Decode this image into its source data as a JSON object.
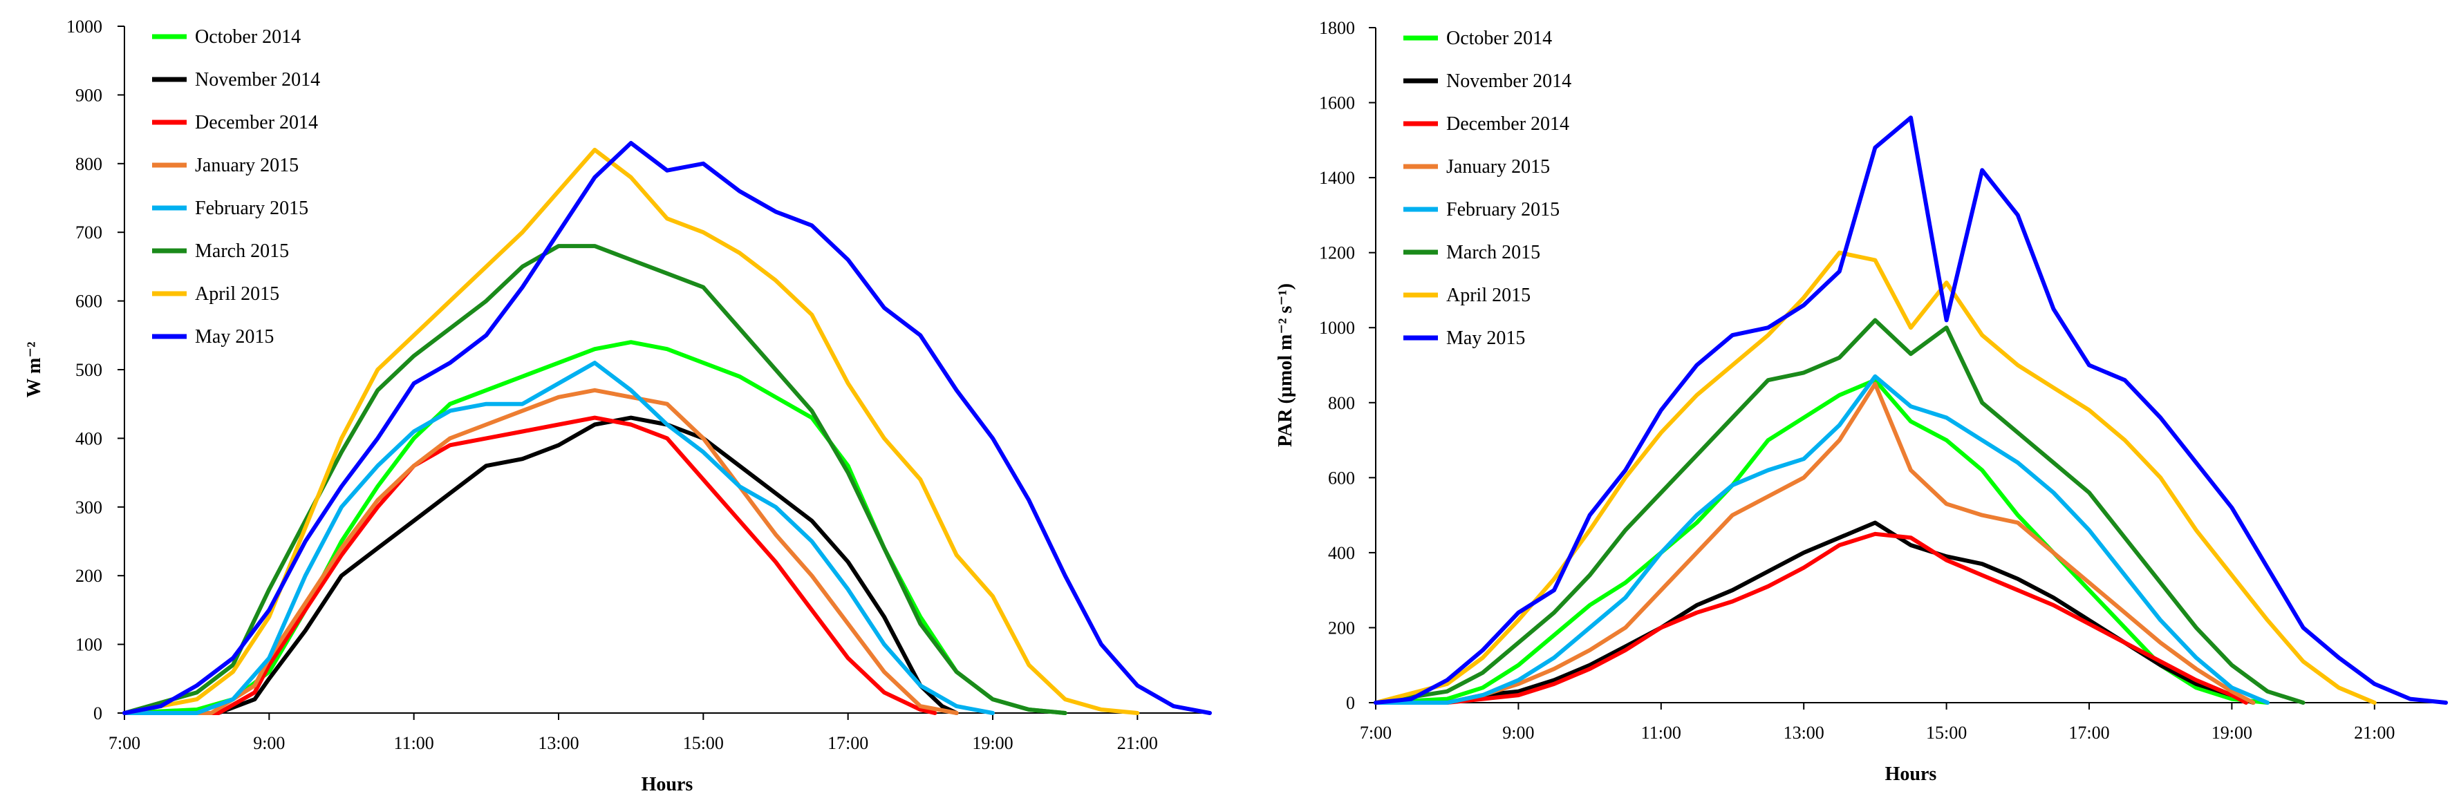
{
  "chart_data": [
    {
      "type": "line",
      "ylabel": "W m⁻²",
      "xlabel": "Hours",
      "ylim": [
        0,
        1000
      ],
      "xlim": [
        7,
        22
      ],
      "yticks": [
        0,
        100,
        200,
        300,
        400,
        500,
        600,
        700,
        800,
        900,
        1000
      ],
      "xticks": [
        "7:00",
        "9:00",
        "11:00",
        "13:00",
        "15:00",
        "17:00",
        "19:00",
        "21:00"
      ],
      "legend_position": "top-left",
      "series": [
        {
          "name": "October 2014",
          "color": "#00ff00",
          "x": [
            7,
            8,
            8.5,
            9,
            9.5,
            10,
            10.5,
            11,
            11.5,
            12,
            12.5,
            13,
            13.5,
            14,
            14.5,
            15,
            15.5,
            16,
            16.5,
            17,
            17.5,
            18,
            18.5,
            19,
            19.5,
            20
          ],
          "y": [
            0,
            5,
            20,
            60,
            150,
            250,
            330,
            400,
            450,
            470,
            490,
            510,
            530,
            540,
            530,
            510,
            490,
            460,
            430,
            360,
            240,
            140,
            60,
            20,
            5,
            0
          ]
        },
        {
          "name": "November 2014",
          "color": "#000000",
          "x": [
            7,
            8.3,
            8.8,
            9,
            9.5,
            10,
            10.5,
            11,
            11.5,
            12,
            12.5,
            13,
            13.5,
            14,
            14.5,
            15,
            15.5,
            16,
            16.5,
            17,
            17.5,
            18,
            18.3,
            18.5
          ],
          "y": [
            0,
            0,
            20,
            50,
            120,
            200,
            240,
            280,
            320,
            360,
            370,
            390,
            420,
            430,
            420,
            400,
            360,
            320,
            280,
            220,
            140,
            40,
            10,
            0
          ]
        },
        {
          "name": "December 2014",
          "color": "#ff0000",
          "x": [
            7,
            8.3,
            8.8,
            9,
            9.5,
            10,
            10.5,
            11,
            11.5,
            12,
            12.5,
            13,
            13.5,
            14,
            14.5,
            15,
            15.5,
            16,
            16.5,
            17,
            17.5,
            18,
            18.2
          ],
          "y": [
            0,
            0,
            30,
            70,
            150,
            230,
            300,
            360,
            390,
            400,
            410,
            420,
            430,
            420,
            400,
            340,
            280,
            220,
            150,
            80,
            30,
            5,
            0
          ]
        },
        {
          "name": "January 2015",
          "color": "#ed7d31",
          "x": [
            7,
            8.2,
            8.8,
            9,
            9.5,
            10,
            10.5,
            11,
            11.5,
            12,
            12.5,
            13,
            13.5,
            14,
            14.5,
            15,
            15.5,
            16,
            16.5,
            17,
            17.5,
            18,
            18.5
          ],
          "y": [
            0,
            0,
            40,
            80,
            160,
            240,
            310,
            360,
            400,
            420,
            440,
            460,
            470,
            460,
            450,
            400,
            330,
            260,
            200,
            130,
            60,
            10,
            0
          ]
        },
        {
          "name": "February 2015",
          "color": "#00b0f0",
          "x": [
            7,
            8,
            8.5,
            9,
            9.5,
            10,
            10.5,
            11,
            11.5,
            12,
            12.5,
            13,
            13.5,
            14,
            14.5,
            15,
            15.5,
            16,
            16.5,
            17,
            17.5,
            18,
            18.5,
            19
          ],
          "y": [
            0,
            0,
            20,
            80,
            200,
            300,
            360,
            410,
            440,
            450,
            450,
            480,
            510,
            470,
            420,
            380,
            330,
            300,
            250,
            180,
            100,
            40,
            10,
            0
          ]
        },
        {
          "name": "March 2015",
          "color": "#1a8a1a",
          "x": [
            7,
            8,
            8.5,
            9,
            9.5,
            10,
            10.5,
            11,
            11.5,
            12,
            12.5,
            13,
            13.5,
            14,
            14.5,
            15,
            15.5,
            16,
            16.5,
            17,
            17.5,
            18,
            18.5,
            19,
            19.5,
            20
          ],
          "y": [
            0,
            30,
            70,
            180,
            280,
            380,
            470,
            520,
            560,
            600,
            650,
            680,
            680,
            660,
            640,
            620,
            560,
            500,
            440,
            350,
            240,
            130,
            60,
            20,
            5,
            0
          ]
        },
        {
          "name": "April 2015",
          "color": "#ffc000",
          "x": [
            7,
            8,
            8.5,
            9,
            9.5,
            10,
            10.5,
            11,
            11.5,
            12,
            12.5,
            13,
            13.5,
            14,
            14.5,
            15,
            15.5,
            16,
            16.5,
            17,
            17.5,
            18,
            18.5,
            19,
            19.5,
            20,
            20.5,
            21
          ],
          "y": [
            0,
            20,
            60,
            140,
            270,
            400,
            500,
            550,
            600,
            650,
            700,
            760,
            820,
            780,
            720,
            700,
            670,
            630,
            580,
            480,
            400,
            340,
            230,
            170,
            70,
            20,
            5,
            0
          ]
        },
        {
          "name": "May 2015",
          "color": "#0000ff",
          "x": [
            7,
            7.5,
            8,
            8.5,
            9,
            9.5,
            10,
            10.5,
            11,
            11.5,
            12,
            12.5,
            13,
            13.5,
            14,
            14.5,
            15,
            15.5,
            16,
            16.5,
            17,
            17.5,
            18,
            18.5,
            19,
            19.5,
            20,
            20.5,
            21,
            21.5,
            22
          ],
          "y": [
            0,
            10,
            40,
            80,
            150,
            250,
            330,
            400,
            480,
            510,
            550,
            620,
            700,
            780,
            830,
            790,
            800,
            760,
            730,
            710,
            660,
            590,
            550,
            470,
            400,
            310,
            200,
            100,
            40,
            10,
            0
          ]
        }
      ]
    },
    {
      "type": "line",
      "ylabel": "PAR (µmol m⁻² s⁻¹)",
      "xlabel": "Hours",
      "ylim": [
        0,
        1800
      ],
      "xlim": [
        7,
        22
      ],
      "yticks": [
        0,
        200,
        400,
        600,
        800,
        1000,
        1200,
        1400,
        1600,
        1800
      ],
      "xticks": [
        "7:00",
        "9:00",
        "11:00",
        "13:00",
        "15:00",
        "17:00",
        "19:00",
        "21:00"
      ],
      "legend_position": "top-left",
      "series": [
        {
          "name": "October 2014",
          "color": "#00ff00",
          "x": [
            7,
            8,
            8.5,
            9,
            9.5,
            10,
            10.5,
            11,
            11.5,
            12,
            12.5,
            13,
            13.5,
            14,
            14.5,
            15,
            15.5,
            16,
            16.5,
            17,
            17.5,
            18,
            18.5,
            19,
            19.5
          ],
          "y": [
            0,
            10,
            40,
            100,
            180,
            260,
            320,
            400,
            480,
            580,
            700,
            760,
            820,
            860,
            750,
            700,
            620,
            500,
            400,
            300,
            200,
            100,
            40,
            10,
            0
          ]
        },
        {
          "name": "November 2014",
          "color": "#000000",
          "x": [
            7,
            8,
            8.5,
            9,
            9.5,
            10,
            10.5,
            11,
            11.5,
            12,
            12.5,
            13,
            13.5,
            14,
            14.5,
            15,
            15.5,
            16,
            16.5,
            17,
            17.5,
            18,
            18.5,
            19,
            19.3
          ],
          "y": [
            0,
            0,
            20,
            30,
            60,
            100,
            150,
            200,
            260,
            300,
            350,
            400,
            440,
            480,
            420,
            390,
            370,
            330,
            280,
            220,
            160,
            100,
            50,
            20,
            0
          ]
        },
        {
          "name": "December 2014",
          "color": "#ff0000",
          "x": [
            7,
            8,
            8.5,
            9,
            9.5,
            10,
            10.5,
            11,
            11.5,
            12,
            12.5,
            13,
            13.5,
            14,
            14.5,
            15,
            15.5,
            16,
            16.5,
            17,
            17.5,
            18,
            18.5,
            19,
            19.2
          ],
          "y": [
            0,
            0,
            10,
            20,
            50,
            90,
            140,
            200,
            240,
            270,
            310,
            360,
            420,
            450,
            440,
            380,
            340,
            300,
            260,
            210,
            160,
            110,
            60,
            20,
            0
          ]
        },
        {
          "name": "January 2015",
          "color": "#ed7d31",
          "x": [
            7,
            8,
            8.5,
            9,
            9.5,
            10,
            10.5,
            11,
            11.5,
            12,
            12.5,
            13,
            13.5,
            14,
            14.5,
            15,
            15.5,
            16,
            16.5,
            17,
            17.5,
            18,
            18.5,
            19,
            19.3
          ],
          "y": [
            0,
            0,
            20,
            50,
            90,
            140,
            200,
            300,
            400,
            500,
            550,
            600,
            700,
            850,
            620,
            530,
            500,
            480,
            400,
            320,
            240,
            160,
            90,
            30,
            0
          ]
        },
        {
          "name": "February 2015",
          "color": "#00b0f0",
          "x": [
            7,
            8,
            8.5,
            9,
            9.5,
            10,
            10.5,
            11,
            11.5,
            12,
            12.5,
            13,
            13.5,
            14,
            14.5,
            15,
            15.5,
            16,
            16.5,
            17,
            17.5,
            18,
            18.5,
            19,
            19.5
          ],
          "y": [
            0,
            0,
            20,
            60,
            120,
            200,
            280,
            400,
            500,
            580,
            620,
            650,
            740,
            870,
            790,
            760,
            700,
            640,
            560,
            460,
            340,
            220,
            120,
            40,
            0
          ]
        },
        {
          "name": "March 2015",
          "color": "#1a8a1a",
          "x": [
            7,
            8,
            8.5,
            9,
            9.5,
            10,
            10.5,
            11,
            11.5,
            12,
            12.5,
            13,
            13.5,
            14,
            14.5,
            15,
            15.5,
            16,
            16.5,
            17,
            17.5,
            18,
            18.5,
            19,
            19.5,
            20
          ],
          "y": [
            0,
            30,
            80,
            160,
            240,
            340,
            460,
            560,
            660,
            760,
            860,
            880,
            920,
            1020,
            930,
            1000,
            800,
            720,
            640,
            560,
            440,
            320,
            200,
            100,
            30,
            0
          ]
        },
        {
          "name": "April 2015",
          "color": "#ffc000",
          "x": [
            7,
            8,
            8.5,
            9,
            9.5,
            10,
            10.5,
            11,
            11.5,
            12,
            12.5,
            13,
            13.5,
            14,
            14.5,
            15,
            15.5,
            16,
            16.5,
            17,
            17.5,
            18,
            18.5,
            19,
            19.5,
            20,
            20.5,
            21
          ],
          "y": [
            0,
            50,
            120,
            220,
            330,
            460,
            600,
            720,
            820,
            900,
            980,
            1080,
            1200,
            1180,
            1000,
            1120,
            980,
            900,
            840,
            780,
            700,
            600,
            460,
            340,
            220,
            110,
            40,
            0
          ]
        },
        {
          "name": "May 2015",
          "color": "#0000ff",
          "x": [
            7,
            7.5,
            8,
            8.5,
            9,
            9.5,
            10,
            10.5,
            11,
            11.5,
            12,
            12.5,
            13,
            13.5,
            14,
            14.5,
            15,
            15.5,
            16,
            16.5,
            17,
            17.5,
            18,
            18.5,
            19,
            19.5,
            20,
            20.5,
            21,
            21.5,
            22
          ],
          "y": [
            0,
            10,
            60,
            140,
            240,
            300,
            500,
            620,
            780,
            900,
            980,
            1000,
            1060,
            1150,
            1480,
            1560,
            1020,
            1420,
            1300,
            1050,
            900,
            860,
            760,
            640,
            520,
            360,
            200,
            120,
            50,
            10,
            0
          ]
        }
      ]
    }
  ]
}
